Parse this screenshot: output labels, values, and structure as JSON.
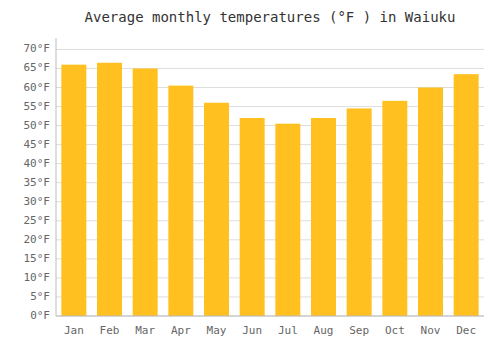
{
  "chart_data": {
    "type": "bar",
    "title": "Average monthly temperatures (°F ) in Waiuku",
    "categories": [
      "Jan",
      "Feb",
      "Mar",
      "Apr",
      "May",
      "Jun",
      "Jul",
      "Aug",
      "Sep",
      "Oct",
      "Nov",
      "Dec"
    ],
    "values": [
      66,
      66.5,
      65,
      60.5,
      56,
      52,
      50.5,
      52,
      54.5,
      56.5,
      60,
      63.5
    ],
    "color": "#FFC020",
    "ylim": [
      0,
      73
    ],
    "yticks": [
      {
        "value": 0,
        "label": "0°F"
      },
      {
        "value": 5,
        "label": "5°F"
      },
      {
        "value": 10,
        "label": "10°F"
      },
      {
        "value": 15,
        "label": "15°F"
      },
      {
        "value": 20,
        "label": "20°F"
      },
      {
        "value": 25,
        "label": "25°F"
      },
      {
        "value": 30,
        "label": "30°F"
      },
      {
        "value": 35,
        "label": "35°F"
      },
      {
        "value": 40,
        "label": "40°F"
      },
      {
        "value": 45,
        "label": "45°F"
      },
      {
        "value": 50,
        "label": "50°F"
      },
      {
        "value": 55,
        "label": "55°F"
      },
      {
        "value": 60,
        "label": "60°F"
      },
      {
        "value": 65,
        "label": "65°F"
      },
      {
        "value": 70,
        "label": "70°F"
      }
    ],
    "grid": true
  }
}
